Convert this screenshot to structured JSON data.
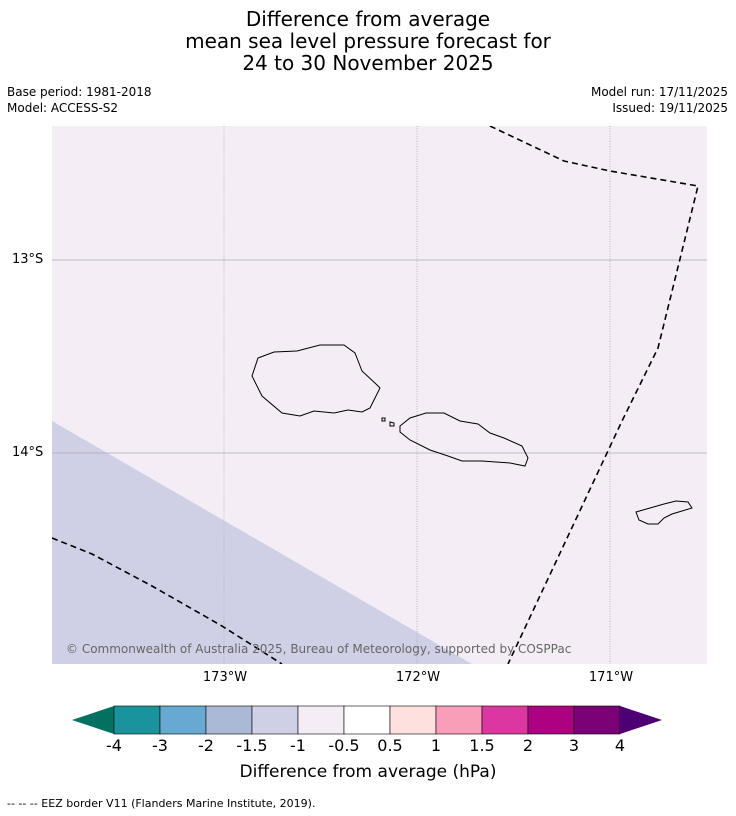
{
  "title": {
    "line1": "Difference from average",
    "line2": "mean sea level pressure forecast for",
    "line3": "24 to 30 November 2025"
  },
  "meta": {
    "base_period": "Base period: 1981-2018",
    "model": "Model: ACCESS-S2",
    "model_run": "Model run: 17/11/2025",
    "issued": "Issued: 19/11/2025"
  },
  "map": {
    "lat_labels": [
      "13°S",
      "14°S"
    ],
    "lon_labels": [
      "173°W",
      "172°W",
      "171°W"
    ],
    "copyright": "© Commonwealth of Australia 2025, Bureau of Meteorology, supported by COSPPac",
    "colors": {
      "background_fill": "#f4edf5",
      "negative_zone_fill": "#cfd0e6",
      "coastline": "#000000",
      "eez_border": "#000000",
      "gridline": "#b0a8b8"
    }
  },
  "colorbar": {
    "title": "Difference from average (hPa)",
    "ticks": [
      "-4",
      "-3",
      "-2",
      "-1.5",
      "-1",
      "-0.5",
      "0.5",
      "1",
      "1.5",
      "2",
      "3",
      "4"
    ],
    "colors": {
      "below_min": "#04705f",
      "segments": [
        "#1a949c",
        "#67a9d1",
        "#a9b9d6",
        "#cfd0e6",
        "#f4edf5",
        "#ffffff",
        "#fee0df",
        "#f89eb9",
        "#dc36a0",
        "#ad0181",
        "#7b0177"
      ],
      "above_max": "#4c0073"
    }
  },
  "footer": {
    "legend_text": "-- -- -- EEZ border V11 (Flanders Marine Institute, 2019)."
  }
}
